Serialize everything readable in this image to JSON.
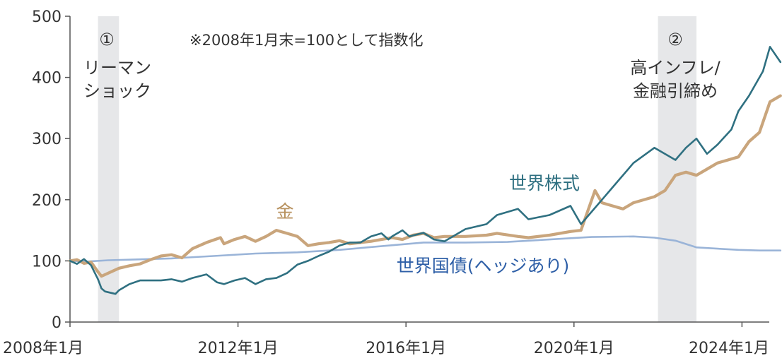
{
  "chart_data": {
    "type": "line",
    "title": "",
    "note": "※2008年1月末=100として指数化",
    "xlabel": "",
    "ylabel": "",
    "ylim": [
      0,
      500
    ],
    "y_ticks": [
      0,
      100,
      200,
      300,
      400,
      500
    ],
    "x_ticks": [
      "2008年1月",
      "2012年1月",
      "2016年1月",
      "2020年1月",
      "2024年1月"
    ],
    "grid": false,
    "legend": "direct labels on lines",
    "shaded_periods": [
      {
        "number": "①",
        "label_lines": [
          "リーマン",
          "ショック"
        ],
        "start": "2008-09",
        "end": "2009-03"
      },
      {
        "number": "②",
        "label_lines": [
          "高インフレ/",
          "金融引締め"
        ],
        "start": "2022-01",
        "end": "2022-12"
      }
    ],
    "series": [
      {
        "name": "世界株式",
        "color": "#2f7081",
        "x": [
          "2008-01",
          "2008-03",
          "2008-05",
          "2008-07",
          "2008-09",
          "2008-10",
          "2008-11",
          "2009-02",
          "2009-03",
          "2009-06",
          "2009-09",
          "2009-12",
          "2010-03",
          "2010-06",
          "2010-09",
          "2010-12",
          "2011-04",
          "2011-07",
          "2011-09",
          "2011-12",
          "2012-03",
          "2012-06",
          "2012-09",
          "2012-12",
          "2013-03",
          "2013-06",
          "2013-09",
          "2013-12",
          "2014-03",
          "2014-06",
          "2014-09",
          "2014-12",
          "2015-03",
          "2015-06",
          "2015-08",
          "2015-09",
          "2015-12",
          "2016-02",
          "2016-06",
          "2016-09",
          "2016-12",
          "2017-06",
          "2017-12",
          "2018-03",
          "2018-09",
          "2018-12",
          "2019-06",
          "2019-12",
          "2020-03",
          "2020-06",
          "2020-09",
          "2020-12",
          "2021-06",
          "2021-12",
          "2022-06",
          "2022-09",
          "2022-12",
          "2023-03",
          "2023-06",
          "2023-10",
          "2023-12",
          "2024-03",
          "2024-07",
          "2024-09",
          "2024-12"
        ],
        "values": [
          100,
          95,
          103,
          93,
          70,
          55,
          50,
          46,
          52,
          62,
          68,
          68,
          68,
          70,
          66,
          72,
          78,
          65,
          62,
          68,
          72,
          62,
          70,
          72,
          80,
          94,
          100,
          108,
          115,
          125,
          130,
          130,
          140,
          145,
          135,
          140,
          150,
          140,
          146,
          135,
          132,
          152,
          160,
          175,
          185,
          168,
          175,
          190,
          160,
          180,
          200,
          220,
          260,
          285,
          265,
          285,
          300,
          275,
          290,
          315,
          345,
          370,
          410,
          450,
          425
        ]
      },
      {
        "name": "金",
        "color": "#c9a57c",
        "x": [
          "2008-01",
          "2008-03",
          "2008-05",
          "2008-07",
          "2008-09",
          "2008-10",
          "2009-03",
          "2009-06",
          "2009-09",
          "2009-12",
          "2010-03",
          "2010-06",
          "2010-09",
          "2010-12",
          "2011-04",
          "2011-08",
          "2011-09",
          "2011-12",
          "2012-03",
          "2012-06",
          "2012-09",
          "2012-12",
          "2013-03",
          "2013-06",
          "2013-09",
          "2013-12",
          "2014-03",
          "2014-06",
          "2014-09",
          "2014-12",
          "2015-03",
          "2015-06",
          "2015-09",
          "2015-12",
          "2016-03",
          "2016-06",
          "2016-09",
          "2016-12",
          "2017-06",
          "2017-12",
          "2018-03",
          "2018-09",
          "2018-12",
          "2019-06",
          "2019-12",
          "2020-03",
          "2020-07",
          "2020-09",
          "2020-12",
          "2021-03",
          "2021-06",
          "2021-12",
          "2022-03",
          "2022-06",
          "2022-09",
          "2022-12",
          "2023-03",
          "2023-06",
          "2023-09",
          "2023-12",
          "2024-03",
          "2024-06",
          "2024-09",
          "2024-12"
        ],
        "values": [
          100,
          102,
          96,
          98,
          82,
          75,
          88,
          92,
          95,
          102,
          108,
          110,
          105,
          120,
          130,
          138,
          128,
          135,
          140,
          132,
          140,
          150,
          145,
          140,
          125,
          128,
          130,
          133,
          128,
          130,
          132,
          135,
          138,
          135,
          142,
          145,
          138,
          140,
          140,
          142,
          145,
          140,
          138,
          142,
          148,
          150,
          215,
          195,
          190,
          185,
          195,
          205,
          215,
          240,
          245,
          240,
          250,
          260,
          265,
          270,
          295,
          310,
          360,
          370
        ]
      },
      {
        "name": "世界国債(ヘッジあり)",
        "color": "#9ab4d8",
        "x": [
          "2008-01",
          "2008-06",
          "2008-12",
          "2009-06",
          "2010-06",
          "2011-06",
          "2012-06",
          "2013-06",
          "2014-06",
          "2015-06",
          "2016-06",
          "2017-06",
          "2018-06",
          "2019-06",
          "2020-06",
          "2021-06",
          "2021-12",
          "2022-06",
          "2022-12",
          "2023-06",
          "2023-12",
          "2024-06",
          "2024-12"
        ],
        "values": [
          100,
          99,
          101,
          102,
          104,
          108,
          112,
          114,
          118,
          124,
          130,
          130,
          131,
          135,
          139,
          140,
          138,
          133,
          122,
          120,
          118,
          117,
          117
        ]
      }
    ]
  }
}
